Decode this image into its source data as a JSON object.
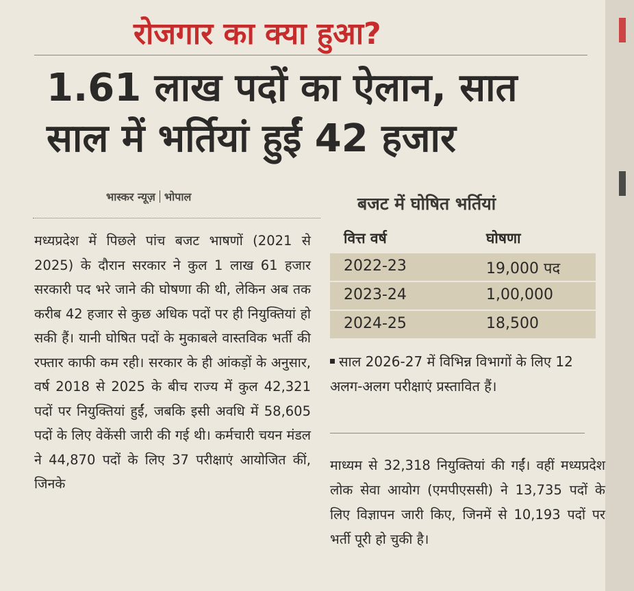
{
  "kicker": "रोजगार का क्या हुआ?",
  "headline": {
    "line1": "1.61 लाख पदों का ऐलान, सात",
    "line2": "साल में भर्तियां हुईं 42 हजार"
  },
  "byline": {
    "source": "भास्कर न्यूज़",
    "city": "भोपाल"
  },
  "left_body": "मध्यप्रदेश में पिछले पांच बजट भाषणों (2021 से 2025) के दौरान सरकार ने कुल 1 लाख 61 हजार सरकारी पद भरे जाने की घोषणा की थी, लेकिन अब तक करीब 42 हजार से कुछ अधिक पदों पर ही नियुक्तियां हो सकी हैं। यानी घोषित पदों के मुकाबले वास्तविक भर्ती की रफ्तार काफी कम रही। सरकार के ही आंकड़ों के अनुसार, वर्ष 2018 से 2025 के बीच राज्य में कुल 42,321 पदों पर नियुक्तियां हुईं, जबकि इसी अवधि में 58,605 पदों के लिए वेकेंसी जारी की गई थी। कर्मचारी चयन मंडल ने 44,870 पदों के लिए 37 परीक्षाएं आयोजित कीं, जिनके",
  "table": {
    "title": "बजट में घोषित भर्तियां",
    "headers": {
      "year": "वित्त वर्ष",
      "announcement": "घोषणा"
    },
    "rows": [
      {
        "year": "2022-23",
        "value": "19,000 पद"
      },
      {
        "year": "2023-24",
        "value": "1,00,000"
      },
      {
        "year": "2024-25",
        "value": "18,500"
      }
    ]
  },
  "note": "साल 2026-27 में विभिन्न विभागों के लिए 12 अलग-अलग परीक्षाएं प्रस्तावित हैं।",
  "right_body": "माध्यम से 32,318 नियुक्तियां की गईं। वहीं मध्यप्रदेश लोक सेवा आयोग (एमपीएससी) ने 13,735 पदों के लिए विज्ञापन जारी किए, जिनमें से 10,193 पदों पर भर्ती पूरी हो चुकी है।"
}
